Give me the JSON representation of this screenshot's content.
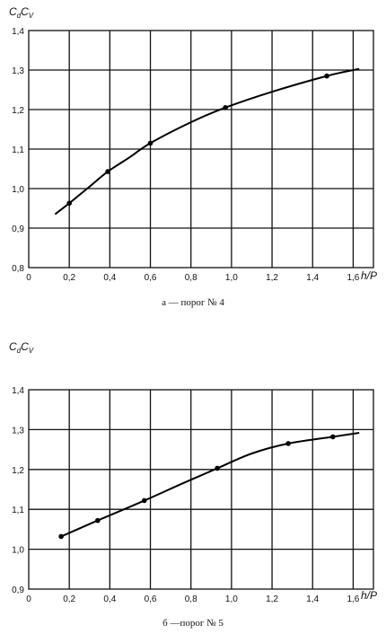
{
  "chart_data": [
    {
      "type": "line",
      "ylabel": {
        "main": "C",
        "sub1": "d",
        "mid": "C",
        "sub2": "V"
      },
      "xlabel": "h/P",
      "caption": "а — порог № 4",
      "xlim": [
        0,
        1.7
      ],
      "ylim": [
        0.8,
        1.4
      ],
      "x_ticks": [
        "0",
        "0,2",
        "0,4",
        "0,6",
        "0,8",
        "1,0",
        "1,2",
        "1,4",
        "1,6"
      ],
      "y_ticks": [
        "0,8",
        "0,9",
        "1,0",
        "1,1",
        "1,2",
        "1,3",
        "1,4"
      ],
      "grid": true,
      "curve": {
        "x": [
          0.13,
          0.2,
          0.3,
          0.39,
          0.5,
          0.6,
          0.8,
          0.97,
          1.2,
          1.47,
          1.63
        ],
        "y": [
          0.935,
          0.963,
          1.005,
          1.043,
          1.08,
          1.115,
          1.168,
          1.205,
          1.245,
          1.285,
          1.303
        ]
      },
      "markers": {
        "x": [
          0.2,
          0.39,
          0.6,
          0.97,
          1.47
        ],
        "y": [
          0.963,
          1.043,
          1.115,
          1.205,
          1.285
        ]
      }
    },
    {
      "type": "line",
      "ylabel": {
        "main": "C",
        "sub1": "d",
        "mid": "C",
        "sub2": "V"
      },
      "xlabel": "h/P",
      "caption": "б —порог № 5",
      "xlim": [
        0,
        1.7
      ],
      "ylim": [
        0.9,
        1.4
      ],
      "x_ticks": [
        "0",
        "0,2",
        "0,4",
        "0,6",
        "0,8",
        "1,0",
        "1,2",
        "1,4",
        "1,6"
      ],
      "y_ticks": [
        "0,9",
        "1,0",
        "1,1",
        "1,2",
        "1,3",
        "1,4"
      ],
      "grid": true,
      "curve": {
        "x": [
          0.16,
          0.34,
          0.57,
          0.75,
          0.93,
          1.1,
          1.28,
          1.5,
          1.63
        ],
        "y": [
          1.032,
          1.072,
          1.122,
          1.163,
          1.203,
          1.24,
          1.265,
          1.282,
          1.292
        ]
      },
      "markers": {
        "x": [
          0.16,
          0.34,
          0.57,
          0.93,
          1.28,
          1.5
        ],
        "y": [
          1.032,
          1.072,
          1.122,
          1.203,
          1.265,
          1.282
        ]
      }
    }
  ]
}
